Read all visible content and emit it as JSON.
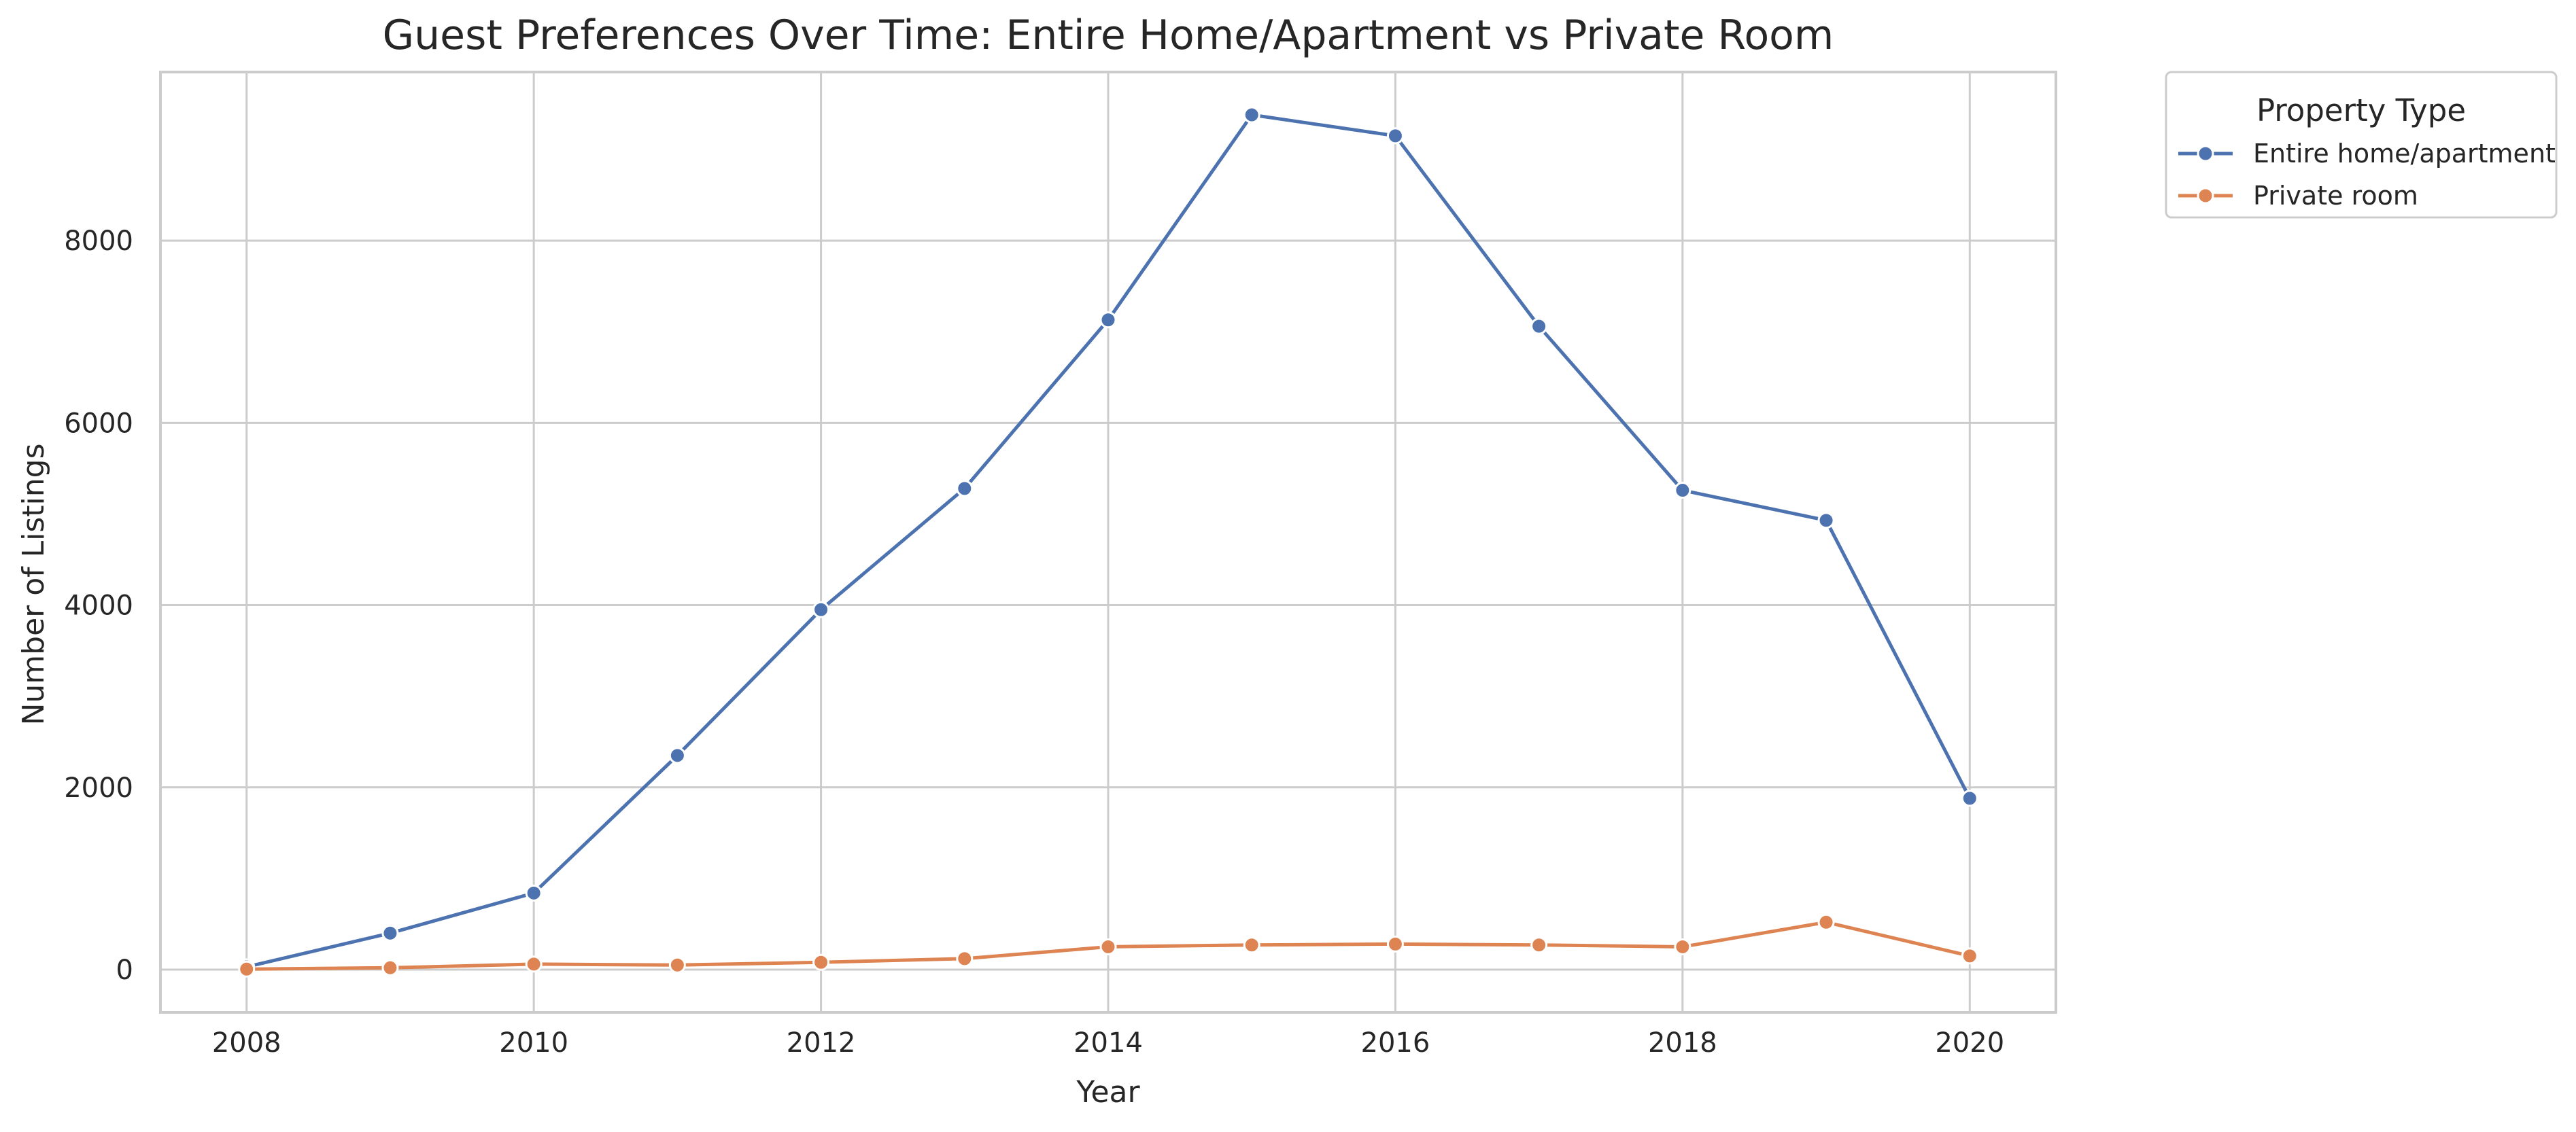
{
  "chart_data": {
    "type": "line",
    "title": "Guest Preferences Over Time: Entire Home/Apartment vs Private Room",
    "xlabel": "Year",
    "ylabel": "Number of Listings",
    "x": [
      2008,
      2009,
      2010,
      2011,
      2012,
      2013,
      2014,
      2015,
      2016,
      2017,
      2018,
      2019,
      2020
    ],
    "xlim": [
      2007.4,
      2020.6
    ],
    "ylim": [
      -470,
      9850
    ],
    "xticks": [
      2008,
      2010,
      2012,
      2014,
      2016,
      2018,
      2020
    ],
    "yticks": [
      0,
      2000,
      4000,
      6000,
      8000
    ],
    "grid": true,
    "legend": {
      "title": "Property Type",
      "placement": "outside-top-right"
    },
    "series": [
      {
        "name": "Entire home/apartment",
        "color": "#4c72b0",
        "values": [
          30,
          400,
          840,
          2350,
          3950,
          5280,
          7130,
          9380,
          9150,
          7060,
          5260,
          4930,
          1880
        ]
      },
      {
        "name": "Private room",
        "color": "#dd8452",
        "values": [
          5,
          20,
          60,
          50,
          80,
          120,
          250,
          270,
          280,
          270,
          250,
          520,
          150
        ]
      }
    ]
  }
}
